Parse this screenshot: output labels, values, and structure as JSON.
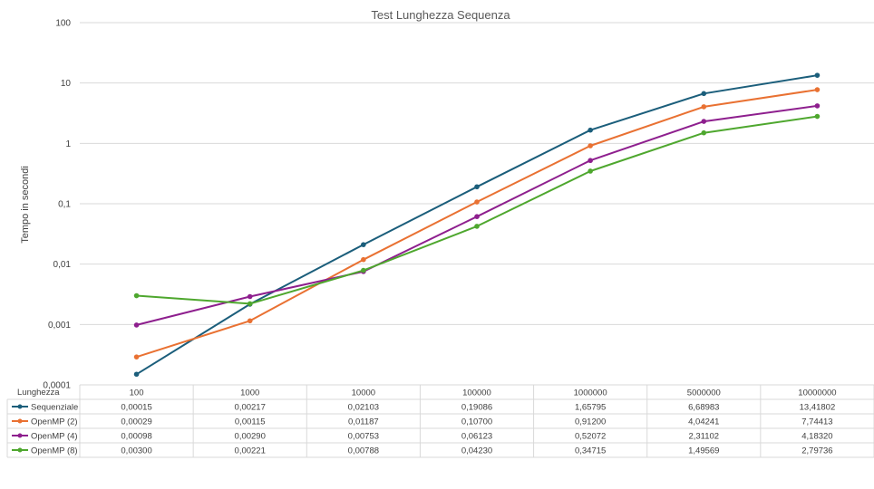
{
  "chart_data": {
    "type": "line",
    "title": "Test Lunghezza Sequenza",
    "ylabel": "Tempo in secondi",
    "xlabel": "Lunghezza",
    "y_scale": "log",
    "ylim": [
      0.0001,
      100
    ],
    "yticks": [
      "0,0001",
      "0,001",
      "0,01",
      "0,1",
      "1",
      "10",
      "100"
    ],
    "categories": [
      "100",
      "1000",
      "10000",
      "100000",
      "1000000",
      "5000000",
      "10000000"
    ],
    "grid": true,
    "legend": "data-table-left",
    "series": [
      {
        "name": "Sequenziale",
        "color": "#1b5e7b",
        "values": [
          0.00015,
          0.00217,
          0.02103,
          0.19086,
          1.65795,
          6.68983,
          13.41802
        ],
        "labels": [
          "0,00015",
          "0,00217",
          "0,02103",
          "0,19086",
          "1,65795",
          "6,68983",
          "13,41802"
        ]
      },
      {
        "name": "OpenMP (2)",
        "color": "#e97132",
        "values": [
          0.00029,
          0.00115,
          0.01187,
          0.107,
          0.912,
          4.04241,
          7.74413
        ],
        "labels": [
          "0,00029",
          "0,00115",
          "0,01187",
          "0,10700",
          "0,91200",
          "4,04241",
          "7,74413"
        ]
      },
      {
        "name": "OpenMP (4)",
        "color": "#8e1f8e",
        "values": [
          0.00098,
          0.0029,
          0.00753,
          0.06123,
          0.52072,
          2.31102,
          4.1832
        ],
        "labels": [
          "0,00098",
          "0,00290",
          "0,00753",
          "0,06123",
          "0,52072",
          "2,31102",
          "4,18320"
        ]
      },
      {
        "name": "OpenMP (8)",
        "color": "#4ea72e",
        "values": [
          0.003,
          0.00221,
          0.00788,
          0.0423,
          0.34715,
          1.49569,
          2.79736
        ],
        "labels": [
          "0,00300",
          "0,00221",
          "0,00788",
          "0,04230",
          "0,34715",
          "1,49569",
          "2,79736"
        ]
      }
    ]
  }
}
